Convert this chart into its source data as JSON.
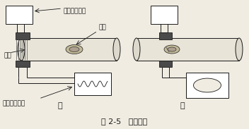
{
  "title": "图 2-5   超声探伤",
  "label_jia": "甲",
  "label_yi": "乙",
  "label_generator": "超声波发生器",
  "label_defect": "缺陷",
  "label_sample": "样品",
  "label_receiver": "超声波接收器",
  "bg_color": "#f0ece2",
  "line_color": "#1a1a1a",
  "title_fontsize": 8,
  "label_fontsize": 6.5
}
